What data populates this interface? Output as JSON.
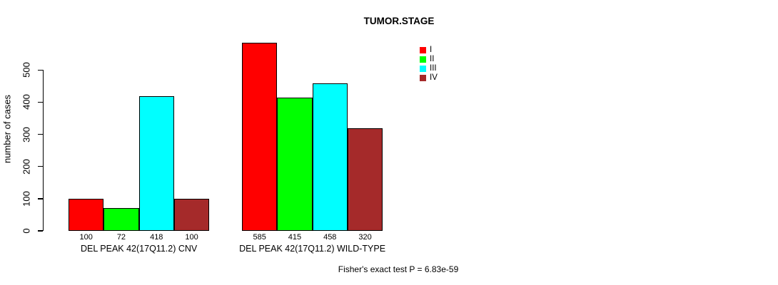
{
  "chart_data": {
    "type": "bar",
    "title": "TUMOR.STAGE",
    "ylabel": "number of cases",
    "xlabel": "",
    "ylim": [
      0,
      600
    ],
    "yticks": [
      0,
      100,
      200,
      300,
      400,
      500
    ],
    "grid": false,
    "series_labels": [
      "I",
      "II",
      "III",
      "IV"
    ],
    "colors": [
      "#ff0000",
      "#00ff00",
      "#00ffff",
      "#a52a2a"
    ],
    "groups": [
      {
        "label": "DEL PEAK 42(17Q11.2) CNV",
        "values": [
          100,
          72,
          418,
          100
        ]
      },
      {
        "label": "DEL PEAK 42(17Q11.2) WILD-TYPE",
        "values": [
          585,
          415,
          458,
          320
        ]
      }
    ],
    "legend": {
      "position": "top-right",
      "entries": [
        {
          "label": "I",
          "color": "#ff0000"
        },
        {
          "label": "II",
          "color": "#00ff00"
        },
        {
          "label": "III",
          "color": "#00ffff"
        },
        {
          "label": "IV",
          "color": "#a52a2a"
        }
      ]
    },
    "annotation": "Fisher's exact test P = 6.83e-59"
  }
}
